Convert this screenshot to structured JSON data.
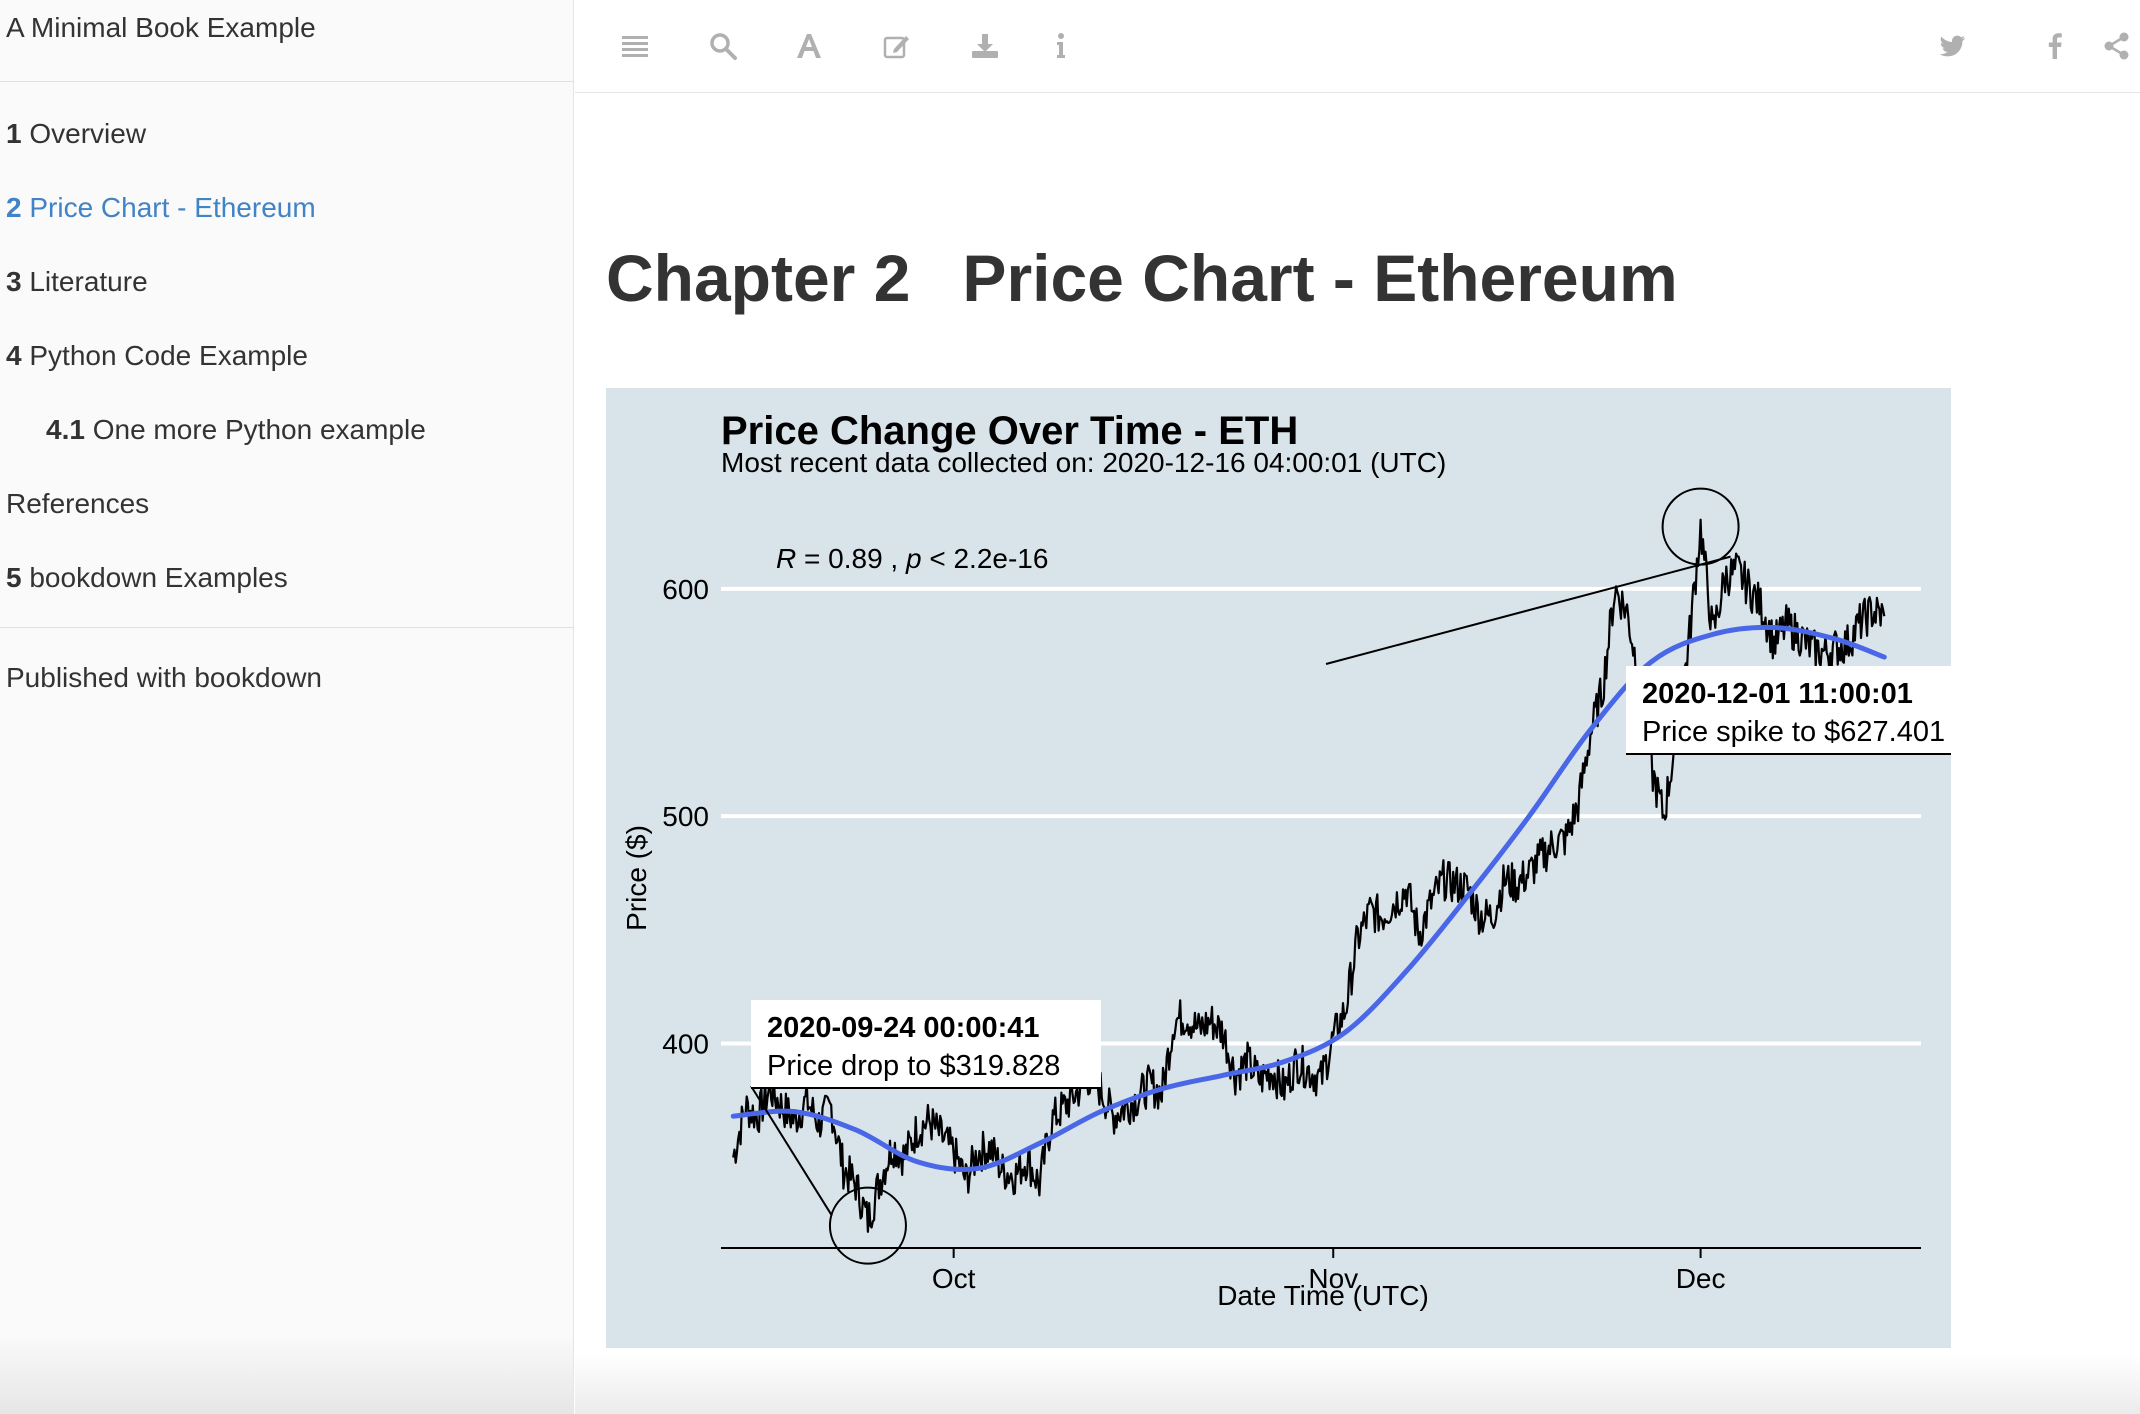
{
  "sidebar": {
    "book_title": "A Minimal Book Example",
    "items": [
      {
        "num": "1",
        "label": "Overview",
        "active": false
      },
      {
        "num": "2",
        "label": "Price Chart - Ethereum",
        "active": true
      },
      {
        "num": "3",
        "label": "Literature",
        "active": false
      },
      {
        "num": "4",
        "label": "Python Code Example",
        "active": false
      },
      {
        "num": "4.1",
        "label": "One more Python example",
        "active": false
      },
      {
        "num": "",
        "label": "References",
        "active": false
      },
      {
        "num": "5",
        "label": "bookdown Examples",
        "active": false
      }
    ],
    "published": "Published with bookdown"
  },
  "toolbar": {
    "left_icons": [
      "menu-icon",
      "search-icon",
      "font-icon",
      "edit-icon",
      "download-icon",
      "info-icon"
    ],
    "right_icons": [
      "twitter-icon",
      "facebook-icon",
      "share-icon"
    ],
    "icon_color": "#b0b0b0"
  },
  "chapter": {
    "number": "Chapter 2",
    "title": "Price Chart - Ethereum"
  },
  "chart_data": {
    "type": "line",
    "title": "Price Change Over Time - ETH",
    "subtitle": "Most recent data collected on: 2020-12-16 04:00:01 (UTC)",
    "xlabel": "Date Time (UTC)",
    "ylabel": "Price ($)",
    "x_ticks": [
      "Oct",
      "Nov",
      "Dec"
    ],
    "y_ticks": [
      400,
      500,
      600
    ],
    "ylim": [
      310,
      640
    ],
    "xlim": [
      "2020-09-12",
      "2020-12-19"
    ],
    "background": "#d9e3ea",
    "price_color": "#000000",
    "trend_color": "#4a67e8",
    "stat_annotation": {
      "r_label": "R",
      "r_value": "= 0.89 ,",
      "p_label": "p",
      "p_value": "< 2.2e-16"
    },
    "annotations": [
      {
        "date": "2020-09-24 00:00:41",
        "text": "Price drop to $319.828",
        "x": "2020-09-24",
        "y": 319.828
      },
      {
        "date": "2020-12-01 11:00:01",
        "text": "Price spike to $627.401",
        "x": "2020-12-01",
        "y": 627.401
      }
    ],
    "series": [
      {
        "x": [
          "2020-09-13",
          "2020-09-14",
          "2020-09-15",
          "2020-09-16",
          "2020-09-17",
          "2020-09-18",
          "2020-09-19",
          "2020-09-20",
          "2020-09-21",
          "2020-09-22",
          "2020-09-23",
          "2020-09-24",
          "2020-09-25",
          "2020-09-26",
          "2020-09-27",
          "2020-09-28",
          "2020-09-29",
          "2020-09-30",
          "2020-10-01",
          "2020-10-02",
          "2020-10-03",
          "2020-10-04",
          "2020-10-05",
          "2020-10-06",
          "2020-10-07",
          "2020-10-08",
          "2020-10-09",
          "2020-10-10",
          "2020-10-11",
          "2020-10-12",
          "2020-10-13",
          "2020-10-14",
          "2020-10-15",
          "2020-10-16",
          "2020-10-17",
          "2020-10-18",
          "2020-10-19",
          "2020-10-20",
          "2020-10-21",
          "2020-10-22",
          "2020-10-23",
          "2020-10-24",
          "2020-10-25",
          "2020-10-26",
          "2020-10-27",
          "2020-10-28",
          "2020-10-29",
          "2020-10-30",
          "2020-10-31",
          "2020-11-01",
          "2020-11-02",
          "2020-11-03",
          "2020-11-04",
          "2020-11-05",
          "2020-11-06",
          "2020-11-07",
          "2020-11-08",
          "2020-11-09",
          "2020-11-10",
          "2020-11-11",
          "2020-11-12",
          "2020-11-13",
          "2020-11-14",
          "2020-11-15",
          "2020-11-16",
          "2020-11-17",
          "2020-11-18",
          "2020-11-19",
          "2020-11-20",
          "2020-11-21",
          "2020-11-22",
          "2020-11-23",
          "2020-11-24",
          "2020-11-25",
          "2020-11-26",
          "2020-11-27",
          "2020-11-28",
          "2020-11-29",
          "2020-11-30",
          "2020-12-01",
          "2020-12-02",
          "2020-12-03",
          "2020-12-04",
          "2020-12-05",
          "2020-12-06",
          "2020-12-07",
          "2020-12-08",
          "2020-12-09",
          "2020-12-10",
          "2020-12-11",
          "2020-12-12",
          "2020-12-13",
          "2020-12-14",
          "2020-12-15",
          "2020-12-16"
        ],
        "y": [
          350,
          372,
          368,
          380,
          372,
          366,
          375,
          365,
          372,
          345,
          338,
          322,
          340,
          355,
          350,
          362,
          366,
          359,
          352,
          340,
          352,
          354,
          344,
          342,
          349,
          338,
          366,
          372,
          378,
          385,
          380,
          368,
          372,
          376,
          382,
          378,
          410,
          412,
          406,
          410,
          405,
          386,
          392,
          384,
          388,
          380,
          392,
          388,
          384,
          402,
          415,
          446,
          458,
          456,
          462,
          468,
          448,
          462,
          472,
          470,
          468,
          456,
          456,
          472,
          470,
          475,
          482,
          488,
          490,
          505,
          536,
          556,
          600,
          590,
          560,
          520,
          500,
          535,
          575,
          627,
          580,
          605,
          608,
          600,
          592,
          576,
          584,
          580,
          574,
          572,
          574,
          576,
          585,
          590,
          588
        ],
        "name": ""
      },
      {
        "x": [
          "2020-09-13",
          "2020-09-18",
          "2020-09-23",
          "2020-09-28",
          "2020-10-03",
          "2020-10-08",
          "2020-10-13",
          "2020-10-18",
          "2020-10-23",
          "2020-10-28",
          "2020-11-02",
          "2020-11-07",
          "2020-11-12",
          "2020-11-17",
          "2020-11-22",
          "2020-11-27",
          "2020-12-02",
          "2020-12-07",
          "2020-12-12",
          "2020-12-16"
        ],
        "y": [
          368,
          370,
          362,
          348,
          345,
          356,
          370,
          380,
          386,
          392,
          405,
          432,
          465,
          500,
          538,
          568,
          580,
          583,
          578,
          570
        ],
        "name": ""
      }
    ]
  }
}
